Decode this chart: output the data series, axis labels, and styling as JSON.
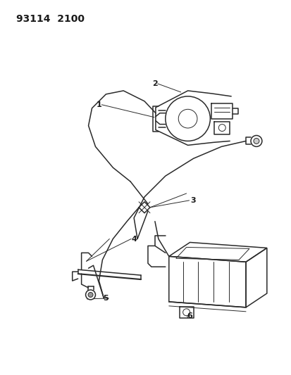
{
  "title": "93114  2100",
  "bg_color": "#ffffff",
  "line_color": "#2a2a2a",
  "label_color": "#1a1a1a",
  "label_fontsize": 8,
  "title_fontsize": 10,
  "fig_width": 4.14,
  "fig_height": 5.33,
  "dpi": 100
}
